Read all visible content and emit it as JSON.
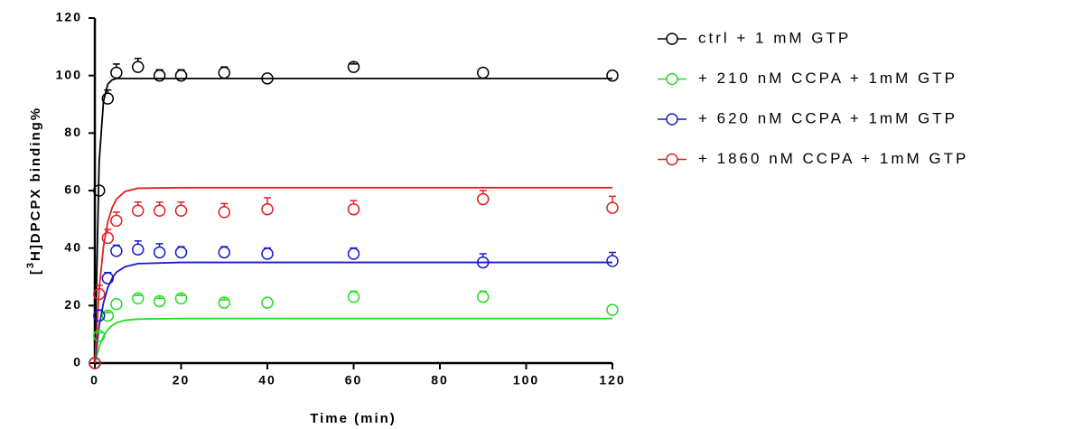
{
  "chart_data": {
    "type": "scatter",
    "x_label": "Time (min)",
    "y_label": {
      "pre": "[",
      "sup": "3",
      "post": "H]DPCPX binding%"
    },
    "xlim": [
      0,
      120
    ],
    "ylim": [
      0,
      120
    ],
    "xticks": [
      0,
      20,
      40,
      60,
      80,
      100,
      120
    ],
    "yticks": [
      0,
      20,
      40,
      60,
      80,
      100,
      120
    ],
    "x": [
      0,
      1,
      3,
      5,
      10,
      15,
      20,
      30,
      40,
      60,
      90,
      120
    ],
    "fit_x": [
      0,
      1,
      2,
      3,
      4,
      5,
      7,
      10,
      20,
      120
    ],
    "series": [
      {
        "name": "ctrl + 1 mM GTP",
        "color": "#000000",
        "values": [
          0,
          60,
          92,
          101,
          103,
          100,
          100,
          101,
          99,
          103,
          101,
          100
        ],
        "errors": [
          0,
          0,
          3,
          3,
          3,
          2,
          2,
          2,
          0,
          1,
          0,
          0
        ],
        "fit_values": [
          0,
          70,
          91,
          97,
          98.5,
          99,
          99,
          99,
          99,
          99
        ]
      },
      {
        "name": "+ 210 nM CCPA + 1mM GTP",
        "color": "#22dd22",
        "values": [
          0,
          9.5,
          16.5,
          20.5,
          22.5,
          21.5,
          22.5,
          21,
          21,
          23,
          23,
          18.5
        ],
        "errors": [
          0,
          1,
          1,
          0,
          1,
          1,
          1,
          1,
          0,
          2,
          2,
          0
        ],
        "fit_values": [
          0,
          5.7,
          9.3,
          11.6,
          13.1,
          14,
          14.9,
          15.3,
          15.5,
          15.5
        ]
      },
      {
        "name": "+ 620 nM CCPA + 1mM GTP",
        "color": "#1a1acc",
        "values": [
          0,
          16.5,
          29.5,
          39,
          39.5,
          38.5,
          38.5,
          38.5,
          38,
          38,
          35,
          35.5
        ],
        "errors": [
          0,
          2,
          2,
          2,
          3,
          3,
          2,
          2,
          2,
          2,
          3,
          3
        ],
        "fit_values": [
          0,
          12.8,
          20.9,
          26.2,
          29.5,
          31.6,
          33.5,
          34.6,
          35,
          35
        ]
      },
      {
        "name": "+ 1860 nM CCPA + 1mM GTP",
        "color": "#dd2222",
        "values": [
          0,
          24,
          43.5,
          49.5,
          53,
          53,
          53,
          52.5,
          53.5,
          53.5,
          57,
          54
        ],
        "errors": [
          0,
          3,
          3,
          3,
          3,
          3,
          3,
          3,
          4,
          3,
          3,
          4
        ],
        "fit_values": [
          0,
          25.7,
          40.5,
          49.1,
          54,
          57,
          59.7,
          60.8,
          61,
          61
        ]
      }
    ]
  }
}
